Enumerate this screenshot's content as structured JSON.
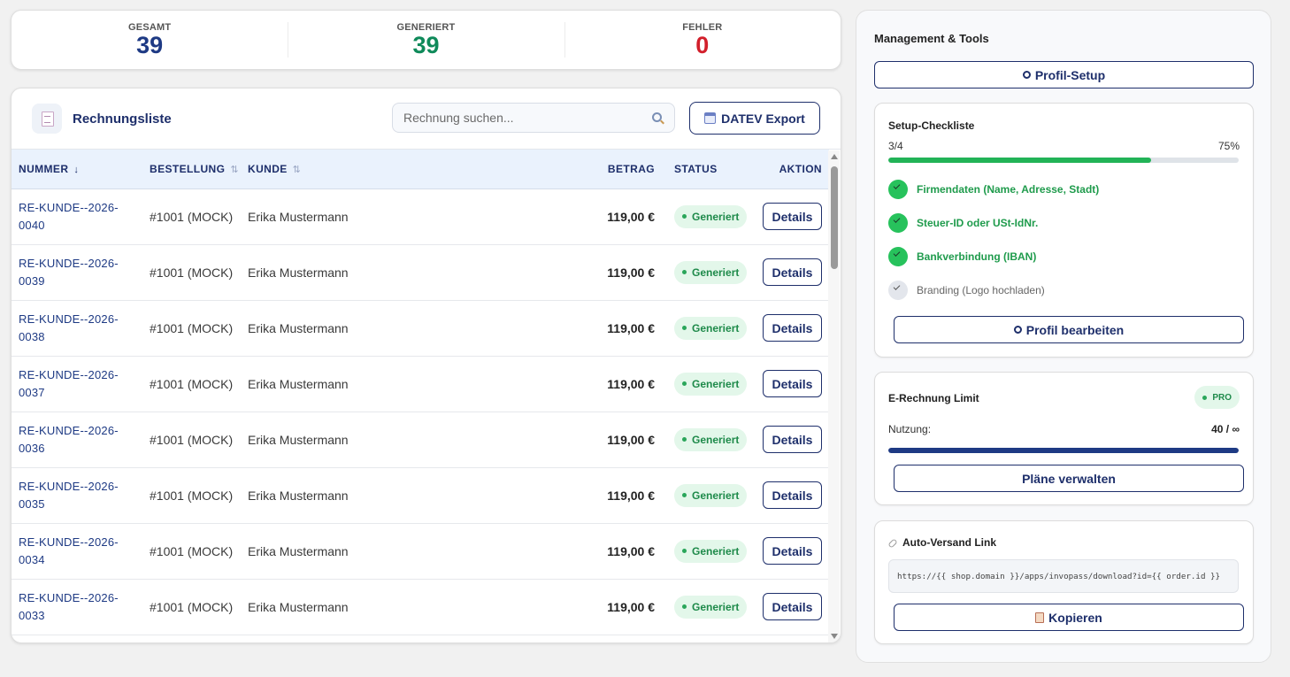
{
  "stats": [
    {
      "label": "GESAMT",
      "value": "39",
      "color": "#1e3a84"
    },
    {
      "label": "GENERIERT",
      "value": "39",
      "color": "#0f8a5a"
    },
    {
      "label": "FEHLER",
      "value": "0",
      "color": "#d21f2b"
    }
  ],
  "invoices": {
    "title": "Rechnungsliste",
    "search_placeholder": "Rechnung suchen...",
    "export_label": "DATEV Export",
    "columns": {
      "nummer": "NUMMER",
      "nummer_sort": "↓",
      "bestellung": "BESTELLUNG",
      "bestellung_sort": "⇅",
      "kunde": "KUNDE",
      "kunde_sort": "⇅",
      "betrag": "BETRAG",
      "status": "STATUS",
      "aktion": "AKTION"
    },
    "rows": [
      {
        "num1": "RE-KUNDE--2026-",
        "num2": "0040",
        "order": "#1001 (MOCK)",
        "customer": "Erika Mustermann",
        "amount": "119,00 €",
        "status": "Generiert",
        "action": "Details"
      },
      {
        "num1": "RE-KUNDE--2026-",
        "num2": "0039",
        "order": "#1001 (MOCK)",
        "customer": "Erika Mustermann",
        "amount": "119,00 €",
        "status": "Generiert",
        "action": "Details"
      },
      {
        "num1": "RE-KUNDE--2026-",
        "num2": "0038",
        "order": "#1001 (MOCK)",
        "customer": "Erika Mustermann",
        "amount": "119,00 €",
        "status": "Generiert",
        "action": "Details"
      },
      {
        "num1": "RE-KUNDE--2026-",
        "num2": "0037",
        "order": "#1001 (MOCK)",
        "customer": "Erika Mustermann",
        "amount": "119,00 €",
        "status": "Generiert",
        "action": "Details"
      },
      {
        "num1": "RE-KUNDE--2026-",
        "num2": "0036",
        "order": "#1001 (MOCK)",
        "customer": "Erika Mustermann",
        "amount": "119,00 €",
        "status": "Generiert",
        "action": "Details"
      },
      {
        "num1": "RE-KUNDE--2026-",
        "num2": "0035",
        "order": "#1001 (MOCK)",
        "customer": "Erika Mustermann",
        "amount": "119,00 €",
        "status": "Generiert",
        "action": "Details"
      },
      {
        "num1": "RE-KUNDE--2026-",
        "num2": "0034",
        "order": "#1001 (MOCK)",
        "customer": "Erika Mustermann",
        "amount": "119,00 €",
        "status": "Generiert",
        "action": "Details"
      },
      {
        "num1": "RE-KUNDE--2026-",
        "num2": "0033",
        "order": "#1001 (MOCK)",
        "customer": "Erika Mustermann",
        "amount": "119,00 €",
        "status": "Generiert",
        "action": "Details"
      }
    ]
  },
  "panel": {
    "title": "Management & Tools",
    "profile_setup_label": "Profil-Setup",
    "checklist": {
      "title": "Setup-Checkliste",
      "count": "3/4",
      "percent": "75%",
      "progress": 0.75,
      "progress_color": "#22b357",
      "items": [
        {
          "label": "Firmendaten (Name, Adresse, Stadt)",
          "done": true
        },
        {
          "label": "Steuer-ID oder USt-IdNr.",
          "done": true
        },
        {
          "label": "Bankverbindung (IBAN)",
          "done": true
        },
        {
          "label": "Branding (Logo hochladen)",
          "done": false
        }
      ],
      "edit_label": "Profil bearbeiten"
    },
    "limit": {
      "title": "E-Rechnung Limit",
      "badge": "PRO",
      "usage_label": "Nutzung:",
      "usage_value": "40 / ∞",
      "progress": 1.0,
      "progress_color": "#1e3a84",
      "manage_label": "Pläne verwalten"
    },
    "auto": {
      "title": "Auto-Versand Link",
      "code": "https://{{ shop.domain }}/apps/invopass/download?id={{ order.id }}",
      "copy_label": "Kopieren"
    }
  }
}
